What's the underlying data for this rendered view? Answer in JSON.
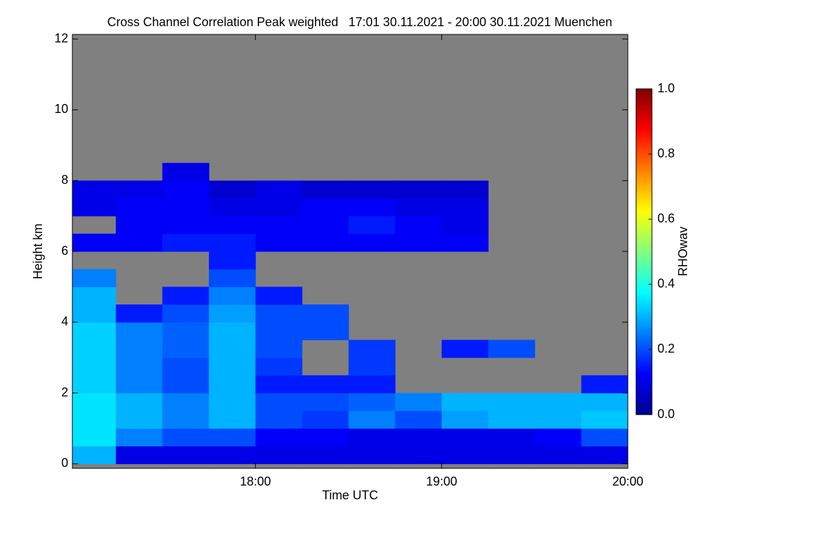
{
  "chart_data": {
    "type": "heatmap",
    "title": "Cross Channel Correlation Peak weighted   17:01 30.11.2021 - 20:00 30.11.2021 Muenchen",
    "xlabel": "Time UTC",
    "ylabel": "Height km",
    "colorbar_label": "RHOwav",
    "colormap": "jet",
    "missing_color": "#808080",
    "xlim": [
      17.0167,
      20.0
    ],
    "xticks": [
      {
        "value": 18,
        "label": "18:00"
      },
      {
        "value": 19,
        "label": "19:00"
      },
      {
        "value": 20,
        "label": "20:00"
      }
    ],
    "ylim": [
      -0.13,
      12.13
    ],
    "yticks": [
      0,
      2,
      4,
      6,
      8,
      10,
      12
    ],
    "zlim": [
      0,
      1
    ],
    "zticks": [
      {
        "value": 0,
        "label": "0.0"
      },
      {
        "value": 0.2,
        "label": "0.2"
      },
      {
        "value": 0.4,
        "label": "0.4"
      },
      {
        "value": 0.6,
        "label": "0.6"
      },
      {
        "value": 0.8,
        "label": "0.8"
      },
      {
        "value": 1,
        "label": "1.0"
      }
    ],
    "x_bins": [
      17.0167,
      17.25,
      17.5,
      17.75,
      18,
      18.25,
      18.5,
      18.75,
      19,
      19.25,
      19.5,
      19.75,
      20
    ],
    "y_bins": [
      0,
      0.5,
      1,
      1.5,
      2,
      2.5,
      3,
      3.5,
      4,
      4.5,
      5,
      5.5,
      6,
      6.5,
      7,
      7.5,
      8,
      8.5
    ],
    "z": [
      [
        0.3,
        0.1,
        0.1,
        0.1,
        0.1,
        0.1,
        0.1,
        0.1,
        0.1,
        0.1,
        0.1,
        0.1
      ],
      [
        0.35,
        0.25,
        0.2,
        0.2,
        0.12,
        0.12,
        0.1,
        0.1,
        0.1,
        0.1,
        0.12,
        0.2
      ],
      [
        0.35,
        0.3,
        0.25,
        0.3,
        0.2,
        0.18,
        0.25,
        0.2,
        0.28,
        0.3,
        0.3,
        0.32
      ],
      [
        0.35,
        0.3,
        0.25,
        0.3,
        0.2,
        0.2,
        0.22,
        0.25,
        0.3,
        0.3,
        0.3,
        0.3
      ],
      [
        0.33,
        0.25,
        0.2,
        0.3,
        0.15,
        0.15,
        0.15,
        null,
        null,
        null,
        null,
        0.15
      ],
      [
        0.33,
        0.25,
        0.2,
        0.3,
        0.18,
        null,
        0.18,
        null,
        null,
        null,
        null,
        null
      ],
      [
        0.33,
        0.25,
        0.22,
        0.3,
        0.2,
        null,
        0.18,
        null,
        0.15,
        0.2,
        null,
        null
      ],
      [
        0.33,
        0.25,
        0.22,
        0.3,
        0.2,
        0.2,
        null,
        null,
        null,
        null,
        null,
        null
      ],
      [
        0.3,
        0.15,
        0.2,
        0.28,
        0.2,
        0.2,
        null,
        null,
        null,
        null,
        null,
        null
      ],
      [
        0.3,
        null,
        0.15,
        0.25,
        0.15,
        null,
        null,
        null,
        null,
        null,
        null,
        null
      ],
      [
        0.25,
        null,
        null,
        0.2,
        null,
        null,
        null,
        null,
        null,
        null,
        null,
        null
      ],
      [
        null,
        null,
        null,
        0.15,
        null,
        null,
        null,
        null,
        null,
        null,
        null,
        null
      ],
      [
        0.12,
        0.12,
        0.15,
        0.15,
        0.12,
        0.12,
        0.12,
        0.12,
        0.12,
        null,
        null,
        null
      ],
      [
        null,
        0.12,
        0.12,
        0.12,
        0.12,
        0.12,
        0.15,
        0.12,
        0.1,
        null,
        null,
        null
      ],
      [
        0.1,
        0.12,
        0.12,
        0.1,
        0.1,
        0.12,
        0.12,
        0.1,
        0.1,
        null,
        null,
        null
      ],
      [
        0.1,
        0.1,
        0.12,
        0.08,
        0.1,
        0.08,
        0.08,
        0.08,
        0.08,
        null,
        null,
        null
      ],
      [
        null,
        null,
        0.1,
        null,
        null,
        null,
        null,
        null,
        null,
        null,
        null,
        null
      ]
    ]
  }
}
